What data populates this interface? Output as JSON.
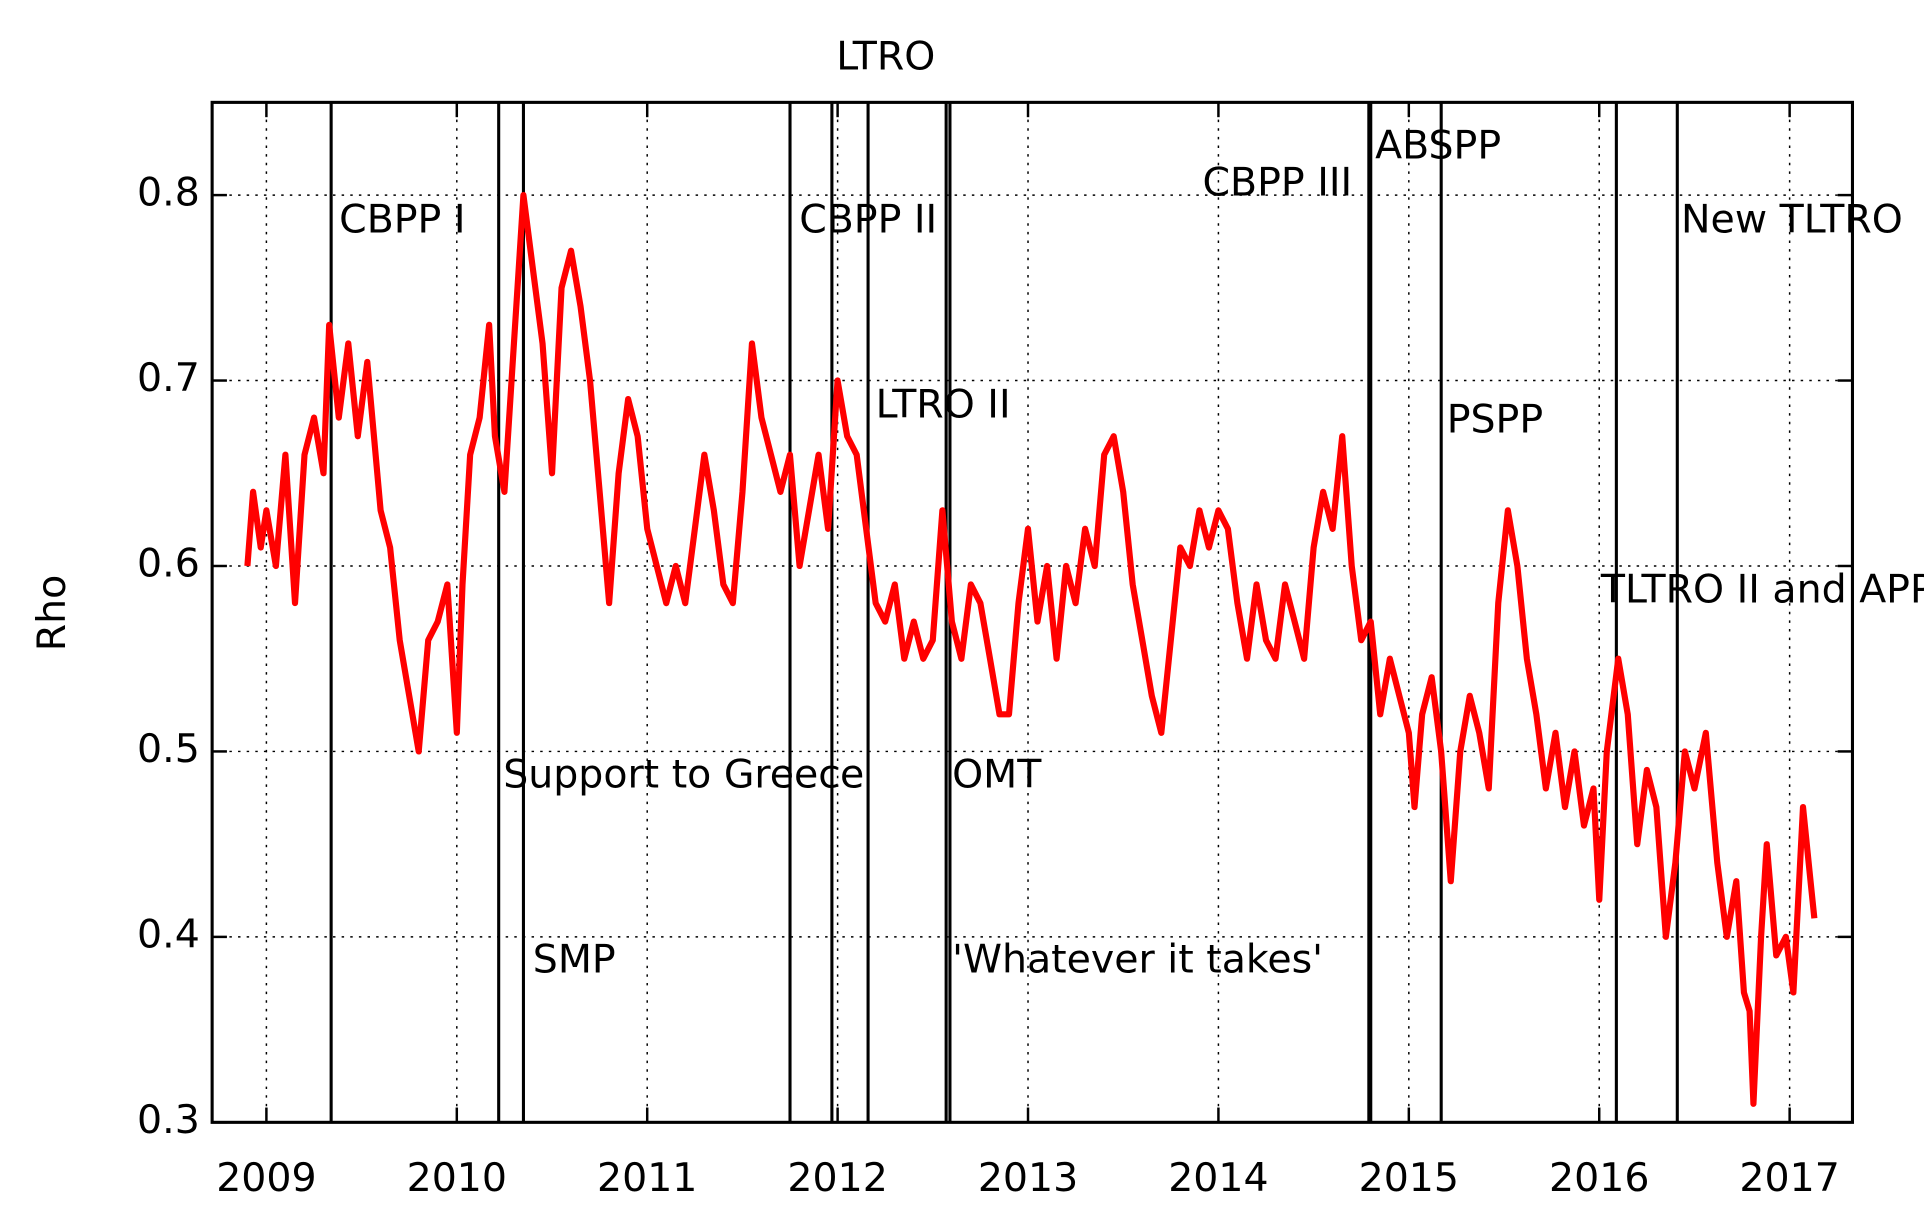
{
  "chart_data": {
    "type": "line",
    "y_label": "Rho",
    "xlim": [
      2008.715,
      2017.33
    ],
    "ylim": [
      0.3,
      0.85
    ],
    "xticks": [
      2009,
      2010,
      2011,
      2012,
      2013,
      2014,
      2015,
      2016,
      2017
    ],
    "yticks": [
      0.3,
      0.4,
      0.5,
      0.6,
      0.7,
      0.8
    ],
    "grid": true,
    "color": "#ff0000",
    "x": [
      2008.9,
      2008.93,
      2008.97,
      2009.0,
      2009.05,
      2009.1,
      2009.15,
      2009.2,
      2009.25,
      2009.3,
      2009.33,
      2009.38,
      2009.43,
      2009.48,
      2009.53,
      2009.6,
      2009.65,
      2009.7,
      2009.75,
      2009.8,
      2009.85,
      2009.9,
      2009.95,
      2010.0,
      2010.03,
      2010.07,
      2010.12,
      2010.17,
      2010.2,
      2010.25,
      2010.3,
      2010.35,
      2010.4,
      2010.45,
      2010.5,
      2010.55,
      2010.6,
      2010.65,
      2010.7,
      2010.75,
      2010.8,
      2010.85,
      2010.9,
      2010.95,
      2011.0,
      2011.05,
      2011.1,
      2011.15,
      2011.2,
      2011.25,
      2011.3,
      2011.35,
      2011.4,
      2011.45,
      2011.5,
      2011.55,
      2011.6,
      2011.65,
      2011.7,
      2011.75,
      2011.8,
      2011.85,
      2011.9,
      2011.95,
      2012.0,
      2012.05,
      2012.1,
      2012.15,
      2012.2,
      2012.25,
      2012.3,
      2012.35,
      2012.4,
      2012.45,
      2012.5,
      2012.55,
      2012.6,
      2012.65,
      2012.7,
      2012.75,
      2012.8,
      2012.85,
      2012.9,
      2012.95,
      2013.0,
      2013.05,
      2013.1,
      2013.15,
      2013.2,
      2013.25,
      2013.3,
      2013.35,
      2013.4,
      2013.45,
      2013.5,
      2013.55,
      2013.6,
      2013.65,
      2013.7,
      2013.75,
      2013.8,
      2013.85,
      2013.9,
      2013.95,
      2014.0,
      2014.05,
      2014.1,
      2014.15,
      2014.2,
      2014.25,
      2014.3,
      2014.35,
      2014.4,
      2014.45,
      2014.5,
      2014.55,
      2014.6,
      2014.65,
      2014.7,
      2014.75,
      2014.8,
      2014.85,
      2014.9,
      2014.95,
      2015.0,
      2015.03,
      2015.07,
      2015.12,
      2015.17,
      2015.22,
      2015.27,
      2015.32,
      2015.37,
      2015.42,
      2015.47,
      2015.52,
      2015.57,
      2015.62,
      2015.67,
      2015.72,
      2015.77,
      2015.82,
      2015.87,
      2015.92,
      2015.97,
      2016.0,
      2016.04,
      2016.1,
      2016.15,
      2016.2,
      2016.25,
      2016.3,
      2016.35,
      2016.4,
      2016.45,
      2016.5,
      2016.56,
      2016.62,
      2016.67,
      2016.72,
      2016.76,
      2016.79,
      2016.81,
      2016.85,
      2016.88,
      2016.93,
      2016.98,
      2017.02,
      2017.07,
      2017.11,
      2017.13
    ],
    "values": [
      0.6,
      0.64,
      0.61,
      0.63,
      0.6,
      0.66,
      0.58,
      0.66,
      0.68,
      0.65,
      0.73,
      0.68,
      0.72,
      0.67,
      0.71,
      0.63,
      0.61,
      0.56,
      0.53,
      0.5,
      0.56,
      0.57,
      0.59,
      0.51,
      0.59,
      0.66,
      0.68,
      0.73,
      0.67,
      0.64,
      0.72,
      0.8,
      0.76,
      0.72,
      0.65,
      0.75,
      0.77,
      0.74,
      0.7,
      0.64,
      0.58,
      0.65,
      0.69,
      0.67,
      0.62,
      0.6,
      0.58,
      0.6,
      0.58,
      0.62,
      0.66,
      0.63,
      0.59,
      0.58,
      0.64,
      0.72,
      0.68,
      0.66,
      0.64,
      0.66,
      0.6,
      0.63,
      0.66,
      0.62,
      0.7,
      0.67,
      0.66,
      0.62,
      0.58,
      0.57,
      0.59,
      0.55,
      0.57,
      0.55,
      0.56,
      0.63,
      0.57,
      0.55,
      0.59,
      0.58,
      0.55,
      0.52,
      0.52,
      0.58,
      0.62,
      0.57,
      0.6,
      0.55,
      0.6,
      0.58,
      0.62,
      0.6,
      0.66,
      0.67,
      0.64,
      0.59,
      0.56,
      0.53,
      0.51,
      0.56,
      0.61,
      0.6,
      0.63,
      0.61,
      0.63,
      0.62,
      0.58,
      0.55,
      0.59,
      0.56,
      0.55,
      0.59,
      0.57,
      0.55,
      0.61,
      0.64,
      0.62,
      0.67,
      0.6,
      0.56,
      0.57,
      0.52,
      0.55,
      0.53,
      0.51,
      0.47,
      0.52,
      0.54,
      0.5,
      0.43,
      0.5,
      0.53,
      0.51,
      0.48,
      0.58,
      0.63,
      0.6,
      0.55,
      0.52,
      0.48,
      0.51,
      0.47,
      0.5,
      0.46,
      0.48,
      0.42,
      0.5,
      0.55,
      0.52,
      0.45,
      0.49,
      0.47,
      0.4,
      0.44,
      0.5,
      0.48,
      0.51,
      0.44,
      0.4,
      0.43,
      0.37,
      0.36,
      0.31,
      0.4,
      0.45,
      0.39,
      0.4,
      0.37,
      0.47,
      0.43,
      0.41
    ],
    "events": [
      {
        "label": "CBPP I",
        "x": 2009.34
      },
      {
        "label": "Support to Greece",
        "x": 2010.22
      },
      {
        "label": "SMP",
        "x": 2010.35
      },
      {
        "label": "CBPP II",
        "x": 2011.75
      },
      {
        "label": "LTRO",
        "x": 2011.97
      },
      {
        "label": "LTRO II",
        "x": 2012.16
      },
      {
        "label": "'Whatever it takes'",
        "x": 2012.57
      },
      {
        "label": "OMT",
        "x": 2012.59
      },
      {
        "label": "CBPP III",
        "x": 2014.79
      },
      {
        "label": "ABSPP",
        "x": 2014.8
      },
      {
        "label": "PSPP",
        "x": 2015.17
      },
      {
        "label": "TLTRO II and APP",
        "x": 2016.09
      },
      {
        "label": "New TLTRO",
        "x": 2016.41
      }
    ]
  }
}
